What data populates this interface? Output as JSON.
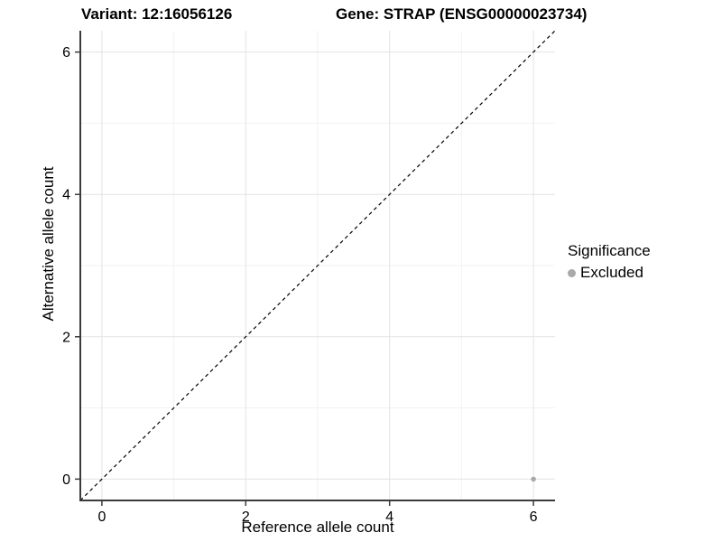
{
  "header": {
    "variant_title": "Variant: 12:16056126",
    "gene_title": "Gene: STRAP (ENSG00000023734)"
  },
  "chart_data": {
    "type": "scatter",
    "xlabel": "Reference allele count",
    "ylabel": "Alternative allele count",
    "xlim": [
      -0.3,
      6.3
    ],
    "ylim": [
      -0.3,
      6.3
    ],
    "x_major_ticks": [
      0,
      2,
      4,
      6
    ],
    "y_major_ticks": [
      0,
      2,
      4,
      6
    ],
    "x_minor_ticks": [
      1,
      3,
      5
    ],
    "y_minor_ticks": [
      1,
      3,
      5
    ],
    "grid": "on",
    "identity_line": {
      "style": "dashed",
      "color": "#000000",
      "from": [
        -0.3,
        -0.3
      ],
      "to": [
        6.3,
        6.3
      ]
    },
    "series": [
      {
        "name": "Excluded",
        "color": "#a9a9a9",
        "points": [
          {
            "x": 6,
            "y": 0
          }
        ]
      }
    ],
    "legend": {
      "title": "Significance",
      "position": "right",
      "entries": [
        {
          "label": "Excluded",
          "color": "#a9a9a9"
        }
      ]
    }
  },
  "colors": {
    "grid_major": "#e3e3e3",
    "grid_minor": "#f2f2f2",
    "axis_line": "#3b3b3b",
    "tick_mark": "#3b3b3b",
    "tick_label": "#000000",
    "background": "#ffffff"
  }
}
